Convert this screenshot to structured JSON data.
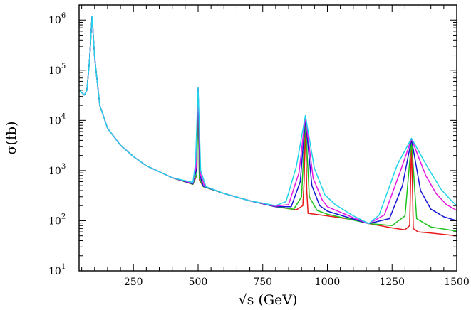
{
  "chart_data": {
    "type": "line",
    "title": "",
    "xlabel": "√s (GeV)",
    "ylabel": "σ(fb)",
    "xlim": [
      40,
      1500
    ],
    "ylim": [
      10,
      2000000
    ],
    "y_scale": "log",
    "grid": false,
    "legend": "none",
    "x_ticks": [
      {
        "value": 250,
        "label": "250"
      },
      {
        "value": 500,
        "label": "500"
      },
      {
        "value": 750,
        "label": "750"
      },
      {
        "value": 1000,
        "label": "1000"
      },
      {
        "value": 1250,
        "label": "1250"
      },
      {
        "value": 1500,
        "label": "1500"
      }
    ],
    "y_ticks": [
      {
        "value": 10,
        "base": "10",
        "exp": "1"
      },
      {
        "value": 100,
        "base": "10",
        "exp": "2"
      },
      {
        "value": 1000,
        "base": "10",
        "exp": "3"
      },
      {
        "value": 10000,
        "base": "10",
        "exp": "4"
      },
      {
        "value": 100000,
        "base": "10",
        "exp": "5"
      },
      {
        "value": 1000000,
        "base": "10",
        "exp": "6"
      }
    ],
    "series": [
      {
        "color": "#e8191b",
        "points": [
          [
            40,
            40000
          ],
          [
            60,
            32000
          ],
          [
            70,
            40000
          ],
          [
            80,
            150000
          ],
          [
            90,
            1200000
          ],
          [
            100,
            180000
          ],
          [
            120,
            20000
          ],
          [
            150,
            7000
          ],
          [
            200,
            3200
          ],
          [
            250,
            1900
          ],
          [
            300,
            1250
          ],
          [
            400,
            720
          ],
          [
            480,
            530
          ],
          [
            495,
            800
          ],
          [
            500,
            42000
          ],
          [
            505,
            650
          ],
          [
            520,
            480
          ],
          [
            600,
            350
          ],
          [
            700,
            250
          ],
          [
            800,
            190
          ],
          [
            880,
            165
          ],
          [
            905,
            200
          ],
          [
            910,
            600
          ],
          [
            915,
            9500
          ],
          [
            920,
            400
          ],
          [
            925,
            140
          ],
          [
            1000,
            125
          ],
          [
            1100,
            105
          ],
          [
            1160,
            88
          ],
          [
            1250,
            72
          ],
          [
            1300,
            66
          ],
          [
            1318,
            80
          ],
          [
            1325,
            4000
          ],
          [
            1332,
            70
          ],
          [
            1350,
            60
          ],
          [
            1400,
            57
          ],
          [
            1500,
            50
          ]
        ]
      },
      {
        "color": "#1ec41e",
        "points": [
          [
            40,
            40000
          ],
          [
            60,
            32000
          ],
          [
            70,
            40000
          ],
          [
            80,
            150000
          ],
          [
            90,
            1200000
          ],
          [
            100,
            180000
          ],
          [
            120,
            20000
          ],
          [
            150,
            7000
          ],
          [
            200,
            3200
          ],
          [
            250,
            1900
          ],
          [
            300,
            1250
          ],
          [
            400,
            720
          ],
          [
            480,
            535
          ],
          [
            495,
            850
          ],
          [
            500,
            42000
          ],
          [
            505,
            700
          ],
          [
            520,
            480
          ],
          [
            600,
            350
          ],
          [
            700,
            250
          ],
          [
            800,
            190
          ],
          [
            870,
            170
          ],
          [
            900,
            300
          ],
          [
            915,
            10000
          ],
          [
            930,
            300
          ],
          [
            960,
            160
          ],
          [
            1000,
            135
          ],
          [
            1100,
            103
          ],
          [
            1160,
            88
          ],
          [
            1250,
            80
          ],
          [
            1300,
            125
          ],
          [
            1325,
            4000
          ],
          [
            1345,
            110
          ],
          [
            1400,
            75
          ],
          [
            1500,
            62
          ]
        ]
      },
      {
        "color": "#1515d6",
        "points": [
          [
            40,
            40000
          ],
          [
            60,
            32000
          ],
          [
            70,
            40000
          ],
          [
            80,
            150000
          ],
          [
            90,
            1200000
          ],
          [
            100,
            180000
          ],
          [
            120,
            20000
          ],
          [
            150,
            7000
          ],
          [
            200,
            3200
          ],
          [
            250,
            1900
          ],
          [
            300,
            1250
          ],
          [
            400,
            720
          ],
          [
            480,
            545
          ],
          [
            493,
            1000
          ],
          [
            500,
            43000
          ],
          [
            507,
            800
          ],
          [
            520,
            490
          ],
          [
            600,
            350
          ],
          [
            700,
            250
          ],
          [
            800,
            190
          ],
          [
            860,
            190
          ],
          [
            895,
            600
          ],
          [
            915,
            11000
          ],
          [
            940,
            500
          ],
          [
            970,
            200
          ],
          [
            1000,
            155
          ],
          [
            1100,
            108
          ],
          [
            1160,
            88
          ],
          [
            1240,
            110
          ],
          [
            1290,
            500
          ],
          [
            1325,
            4200
          ],
          [
            1360,
            400
          ],
          [
            1400,
            170
          ],
          [
            1450,
            120
          ],
          [
            1500,
            100
          ]
        ]
      },
      {
        "color": "#e617e6",
        "points": [
          [
            40,
            40000
          ],
          [
            60,
            32000
          ],
          [
            70,
            40000
          ],
          [
            80,
            150000
          ],
          [
            90,
            1200000
          ],
          [
            100,
            180000
          ],
          [
            120,
            20000
          ],
          [
            150,
            7000
          ],
          [
            200,
            3200
          ],
          [
            250,
            1900
          ],
          [
            300,
            1250
          ],
          [
            400,
            720
          ],
          [
            480,
            560
          ],
          [
            492,
            1200
          ],
          [
            500,
            44000
          ],
          [
            508,
            900
          ],
          [
            525,
            490
          ],
          [
            600,
            350
          ],
          [
            700,
            250
          ],
          [
            800,
            195
          ],
          [
            850,
            210
          ],
          [
            890,
            900
          ],
          [
            915,
            12000
          ],
          [
            945,
            700
          ],
          [
            980,
            260
          ],
          [
            1000,
            190
          ],
          [
            1100,
            115
          ],
          [
            1160,
            88
          ],
          [
            1220,
            130
          ],
          [
            1280,
            900
          ],
          [
            1325,
            4300
          ],
          [
            1380,
            800
          ],
          [
            1420,
            350
          ],
          [
            1460,
            210
          ],
          [
            1500,
            160
          ]
        ]
      },
      {
        "color": "#1fd3e8",
        "points": [
          [
            40,
            40000
          ],
          [
            60,
            32000
          ],
          [
            70,
            40000
          ],
          [
            80,
            150000
          ],
          [
            90,
            1200000
          ],
          [
            100,
            180000
          ],
          [
            120,
            20000
          ],
          [
            150,
            7000
          ],
          [
            200,
            3200
          ],
          [
            250,
            1900
          ],
          [
            300,
            1250
          ],
          [
            400,
            720
          ],
          [
            480,
            580
          ],
          [
            490,
            1400
          ],
          [
            500,
            45000
          ],
          [
            510,
            1000
          ],
          [
            530,
            480
          ],
          [
            600,
            350
          ],
          [
            700,
            250
          ],
          [
            800,
            200
          ],
          [
            840,
            240
          ],
          [
            880,
            1200
          ],
          [
            915,
            12500
          ],
          [
            950,
            1100
          ],
          [
            990,
            330
          ],
          [
            1030,
            210
          ],
          [
            1100,
            125
          ],
          [
            1160,
            88
          ],
          [
            1200,
            130
          ],
          [
            1270,
            1300
          ],
          [
            1325,
            4400
          ],
          [
            1390,
            1100
          ],
          [
            1440,
            420
          ],
          [
            1480,
            250
          ],
          [
            1500,
            200
          ]
        ]
      }
    ]
  }
}
